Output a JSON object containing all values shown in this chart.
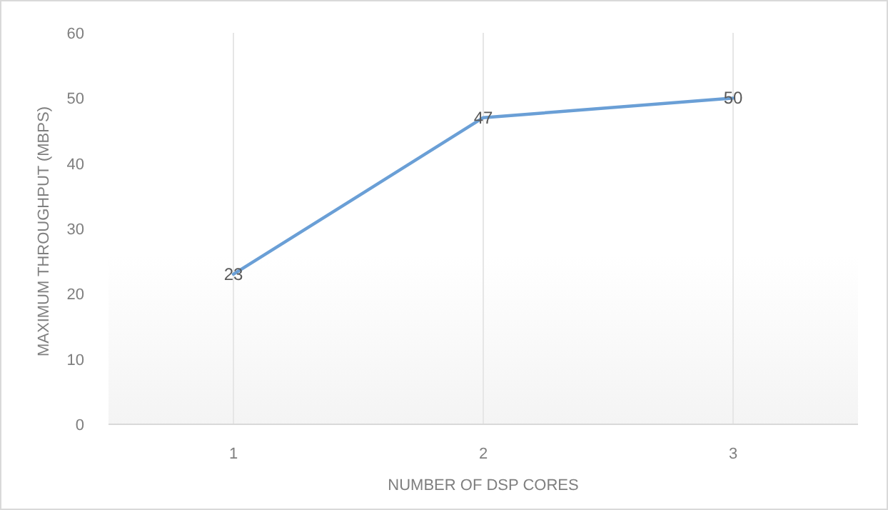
{
  "chart_data": {
    "type": "line",
    "xlabel": "NUMBER OF DSP CORES",
    "ylabel": "MAXIMUM THROUGHPUT (MBPS)",
    "categories": [
      "1",
      "2",
      "3"
    ],
    "series": [
      {
        "color": "#6a9fd6",
        "values": [
          23,
          47,
          50
        ]
      }
    ],
    "ylim": [
      0,
      60
    ],
    "yticks": [
      0,
      10,
      20,
      30,
      40,
      50,
      60
    ],
    "grid": "x",
    "data_labels": true,
    "marker": "none",
    "line_style": "solid"
  }
}
